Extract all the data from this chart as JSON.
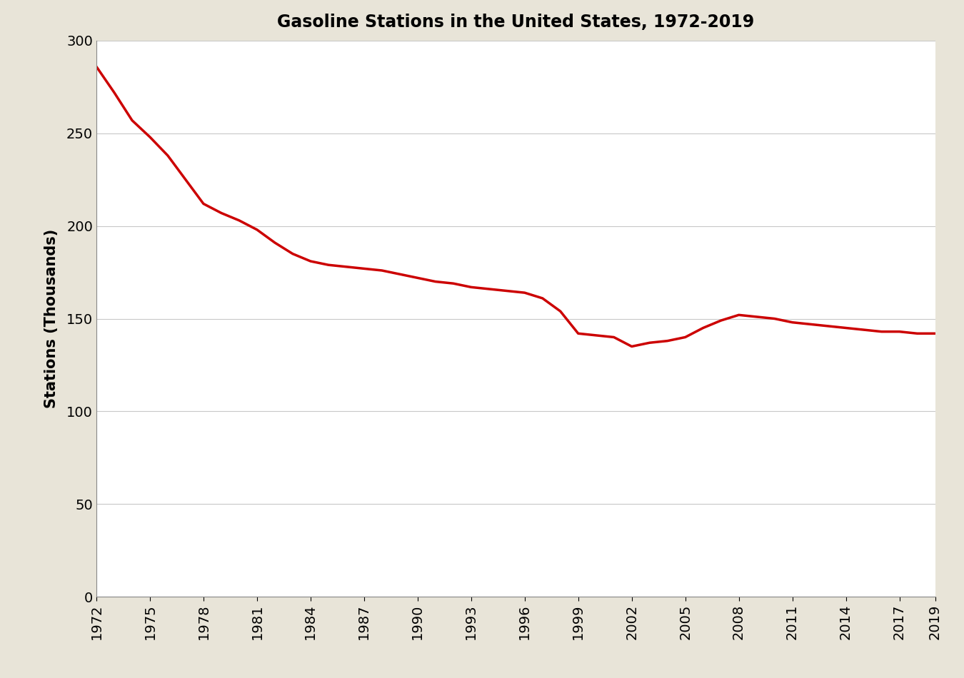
{
  "title": "Gasoline Stations in the United States, 1972-2019",
  "ylabel": "Stations (Thousands)",
  "background_color": "#e8e4d8",
  "plot_background": "#ffffff",
  "line_color": "#cc0000",
  "line_width": 2.5,
  "ylim": [
    0,
    300
  ],
  "yticks": [
    0,
    50,
    100,
    150,
    200,
    250,
    300
  ],
  "xlim": [
    1972,
    2019
  ],
  "xtick_years": [
    1972,
    1975,
    1978,
    1981,
    1984,
    1987,
    1990,
    1993,
    1996,
    1999,
    2002,
    2005,
    2008,
    2011,
    2014,
    2017,
    2019
  ],
  "years": [
    1972,
    1973,
    1974,
    1975,
    1976,
    1977,
    1978,
    1979,
    1980,
    1981,
    1982,
    1983,
    1984,
    1985,
    1986,
    1987,
    1988,
    1989,
    1990,
    1991,
    1992,
    1993,
    1994,
    1995,
    1996,
    1997,
    1998,
    1999,
    2000,
    2001,
    2002,
    2003,
    2004,
    2005,
    2006,
    2007,
    2008,
    2009,
    2010,
    2011,
    2012,
    2013,
    2014,
    2015,
    2016,
    2017,
    2018,
    2019
  ],
  "values": [
    286,
    272,
    257,
    248,
    238,
    225,
    212,
    207,
    203,
    198,
    191,
    185,
    181,
    179,
    178,
    177,
    176,
    174,
    172,
    170,
    169,
    167,
    166,
    165,
    164,
    161,
    154,
    142,
    141,
    140,
    135,
    137,
    138,
    140,
    145,
    149,
    152,
    151,
    150,
    148,
    147,
    146,
    145,
    144,
    143,
    143,
    142,
    142
  ]
}
